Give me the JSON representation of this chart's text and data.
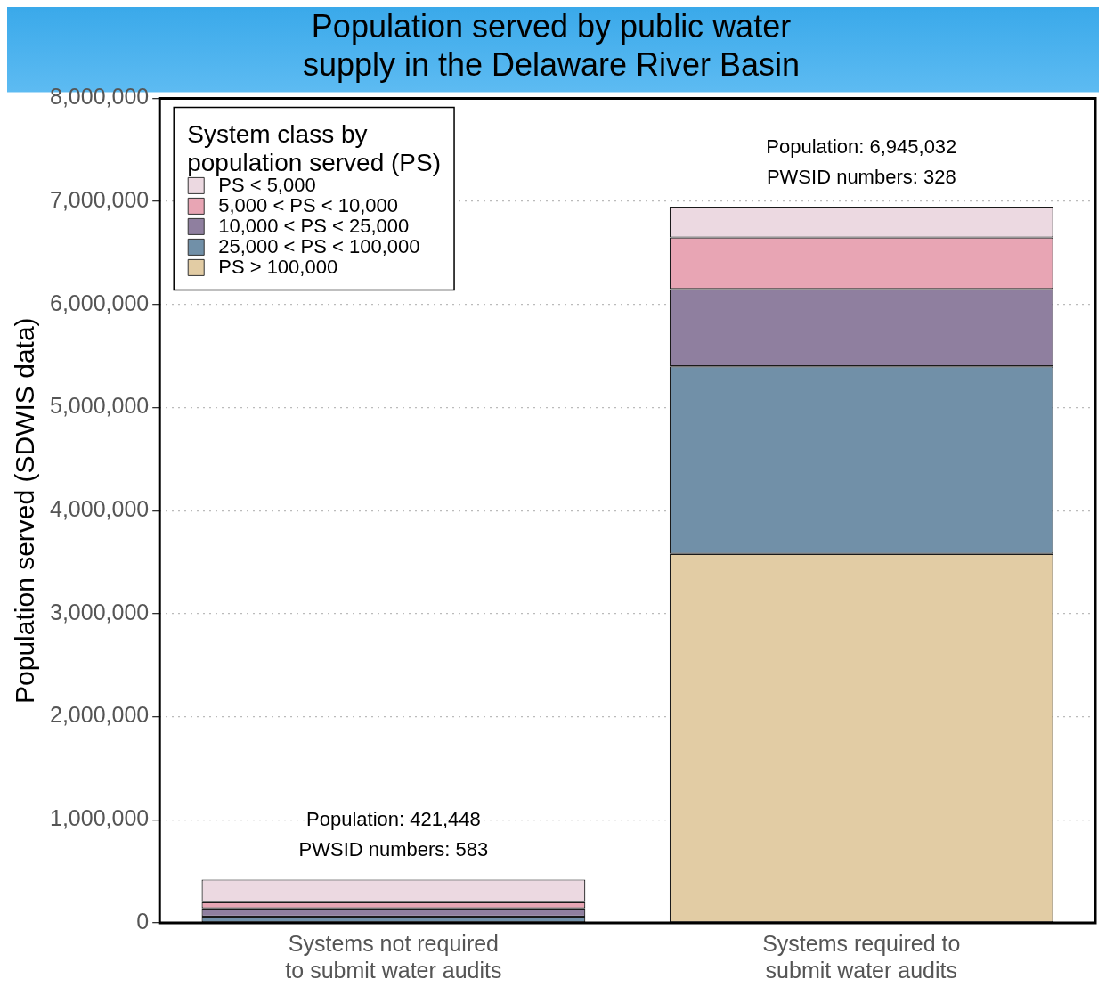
{
  "chart_data": {
    "type": "bar",
    "title": "Population served by public water supply in the Delaware River Basin",
    "ylabel": "Population served (SDWIS data)",
    "categories": [
      "Systems not required to submit water audits",
      "Systems required to submit water audits"
    ],
    "stacked": true,
    "series": [
      {
        "name": "PS > 100,000",
        "color": "#e2cca4",
        "values": [
          0,
          3580000
        ]
      },
      {
        "name": "25,000 < PS < 100,000",
        "color": "#7190a8",
        "values": [
          60000,
          1820000
        ]
      },
      {
        "name": "10,000 < PS < 25,000",
        "color": "#8f7f9f",
        "values": [
          80000,
          750000
        ]
      },
      {
        "name": "5,000 < PS < 10,000",
        "color": "#e8a5b4",
        "values": [
          60000,
          500000
        ]
      },
      {
        "name": "PS < 5,000",
        "color": "#ecd9e1",
        "values": [
          220000,
          300000
        ]
      }
    ],
    "legend_title": "System class by population served (PS)",
    "legend": "top left",
    "ylim": [
      0,
      8000000
    ],
    "yticks": [
      {
        "value": 0,
        "label": "0"
      },
      {
        "value": 1000000,
        "label": "1,000,000"
      },
      {
        "value": 2000000,
        "label": "2,000,000"
      },
      {
        "value": 3000000,
        "label": "3,000,000"
      },
      {
        "value": 4000000,
        "label": "4,000,000"
      },
      {
        "value": 5000000,
        "label": "5,000,000"
      },
      {
        "value": 6000000,
        "label": "6,000,000"
      },
      {
        "value": 7000000,
        "label": "7,000,000"
      },
      {
        "value": 8000000,
        "label": "8,000,000"
      }
    ],
    "grid": "y",
    "annotations": [
      {
        "text": "Population: 421,448\nPWSID numbers: 583",
        "x": "Systems not required to submit water audits",
        "y": 421448
      },
      {
        "text": "Population: 6,945,032\nPWSID numbers: 328",
        "x": "Systems required to submit water audits",
        "y": 6945032
      }
    ]
  }
}
